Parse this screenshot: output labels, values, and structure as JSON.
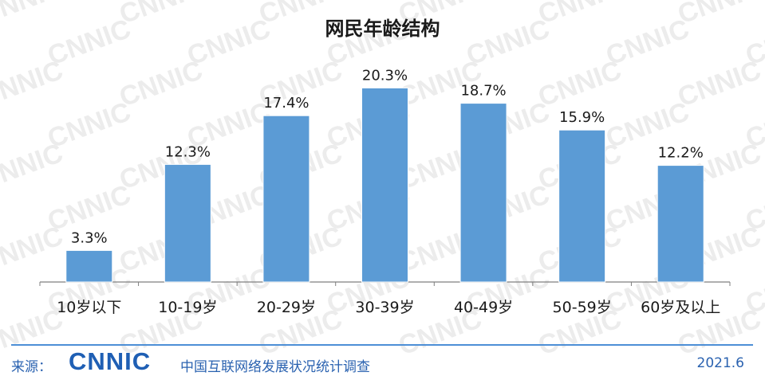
{
  "chart_data": {
    "type": "bar",
    "title": "网民年龄结构",
    "categories": [
      "10岁以下",
      "10-19岁",
      "20-29岁",
      "30-39岁",
      "40-49岁",
      "50-59岁",
      "60岁及以上"
    ],
    "values": [
      3.3,
      12.3,
      17.4,
      20.3,
      18.7,
      15.9,
      12.2
    ],
    "value_labels": [
      "3.3%",
      "12.3%",
      "17.4%",
      "20.3%",
      "18.7%",
      "15.9%",
      "12.2%"
    ],
    "unit": "%",
    "ylim": [
      0,
      25
    ],
    "grid": false,
    "bar_color": "#5b9bd5"
  },
  "footer": {
    "source_label": "来源：",
    "logo_text": "CNNIC",
    "org_name": "中国互联网络发展状况统计调查",
    "date": "2021.6"
  },
  "watermark_text": "CNNIC",
  "colors": {
    "footer_blue": "#2a62b0",
    "logo_blue": "#1f5fb4"
  }
}
